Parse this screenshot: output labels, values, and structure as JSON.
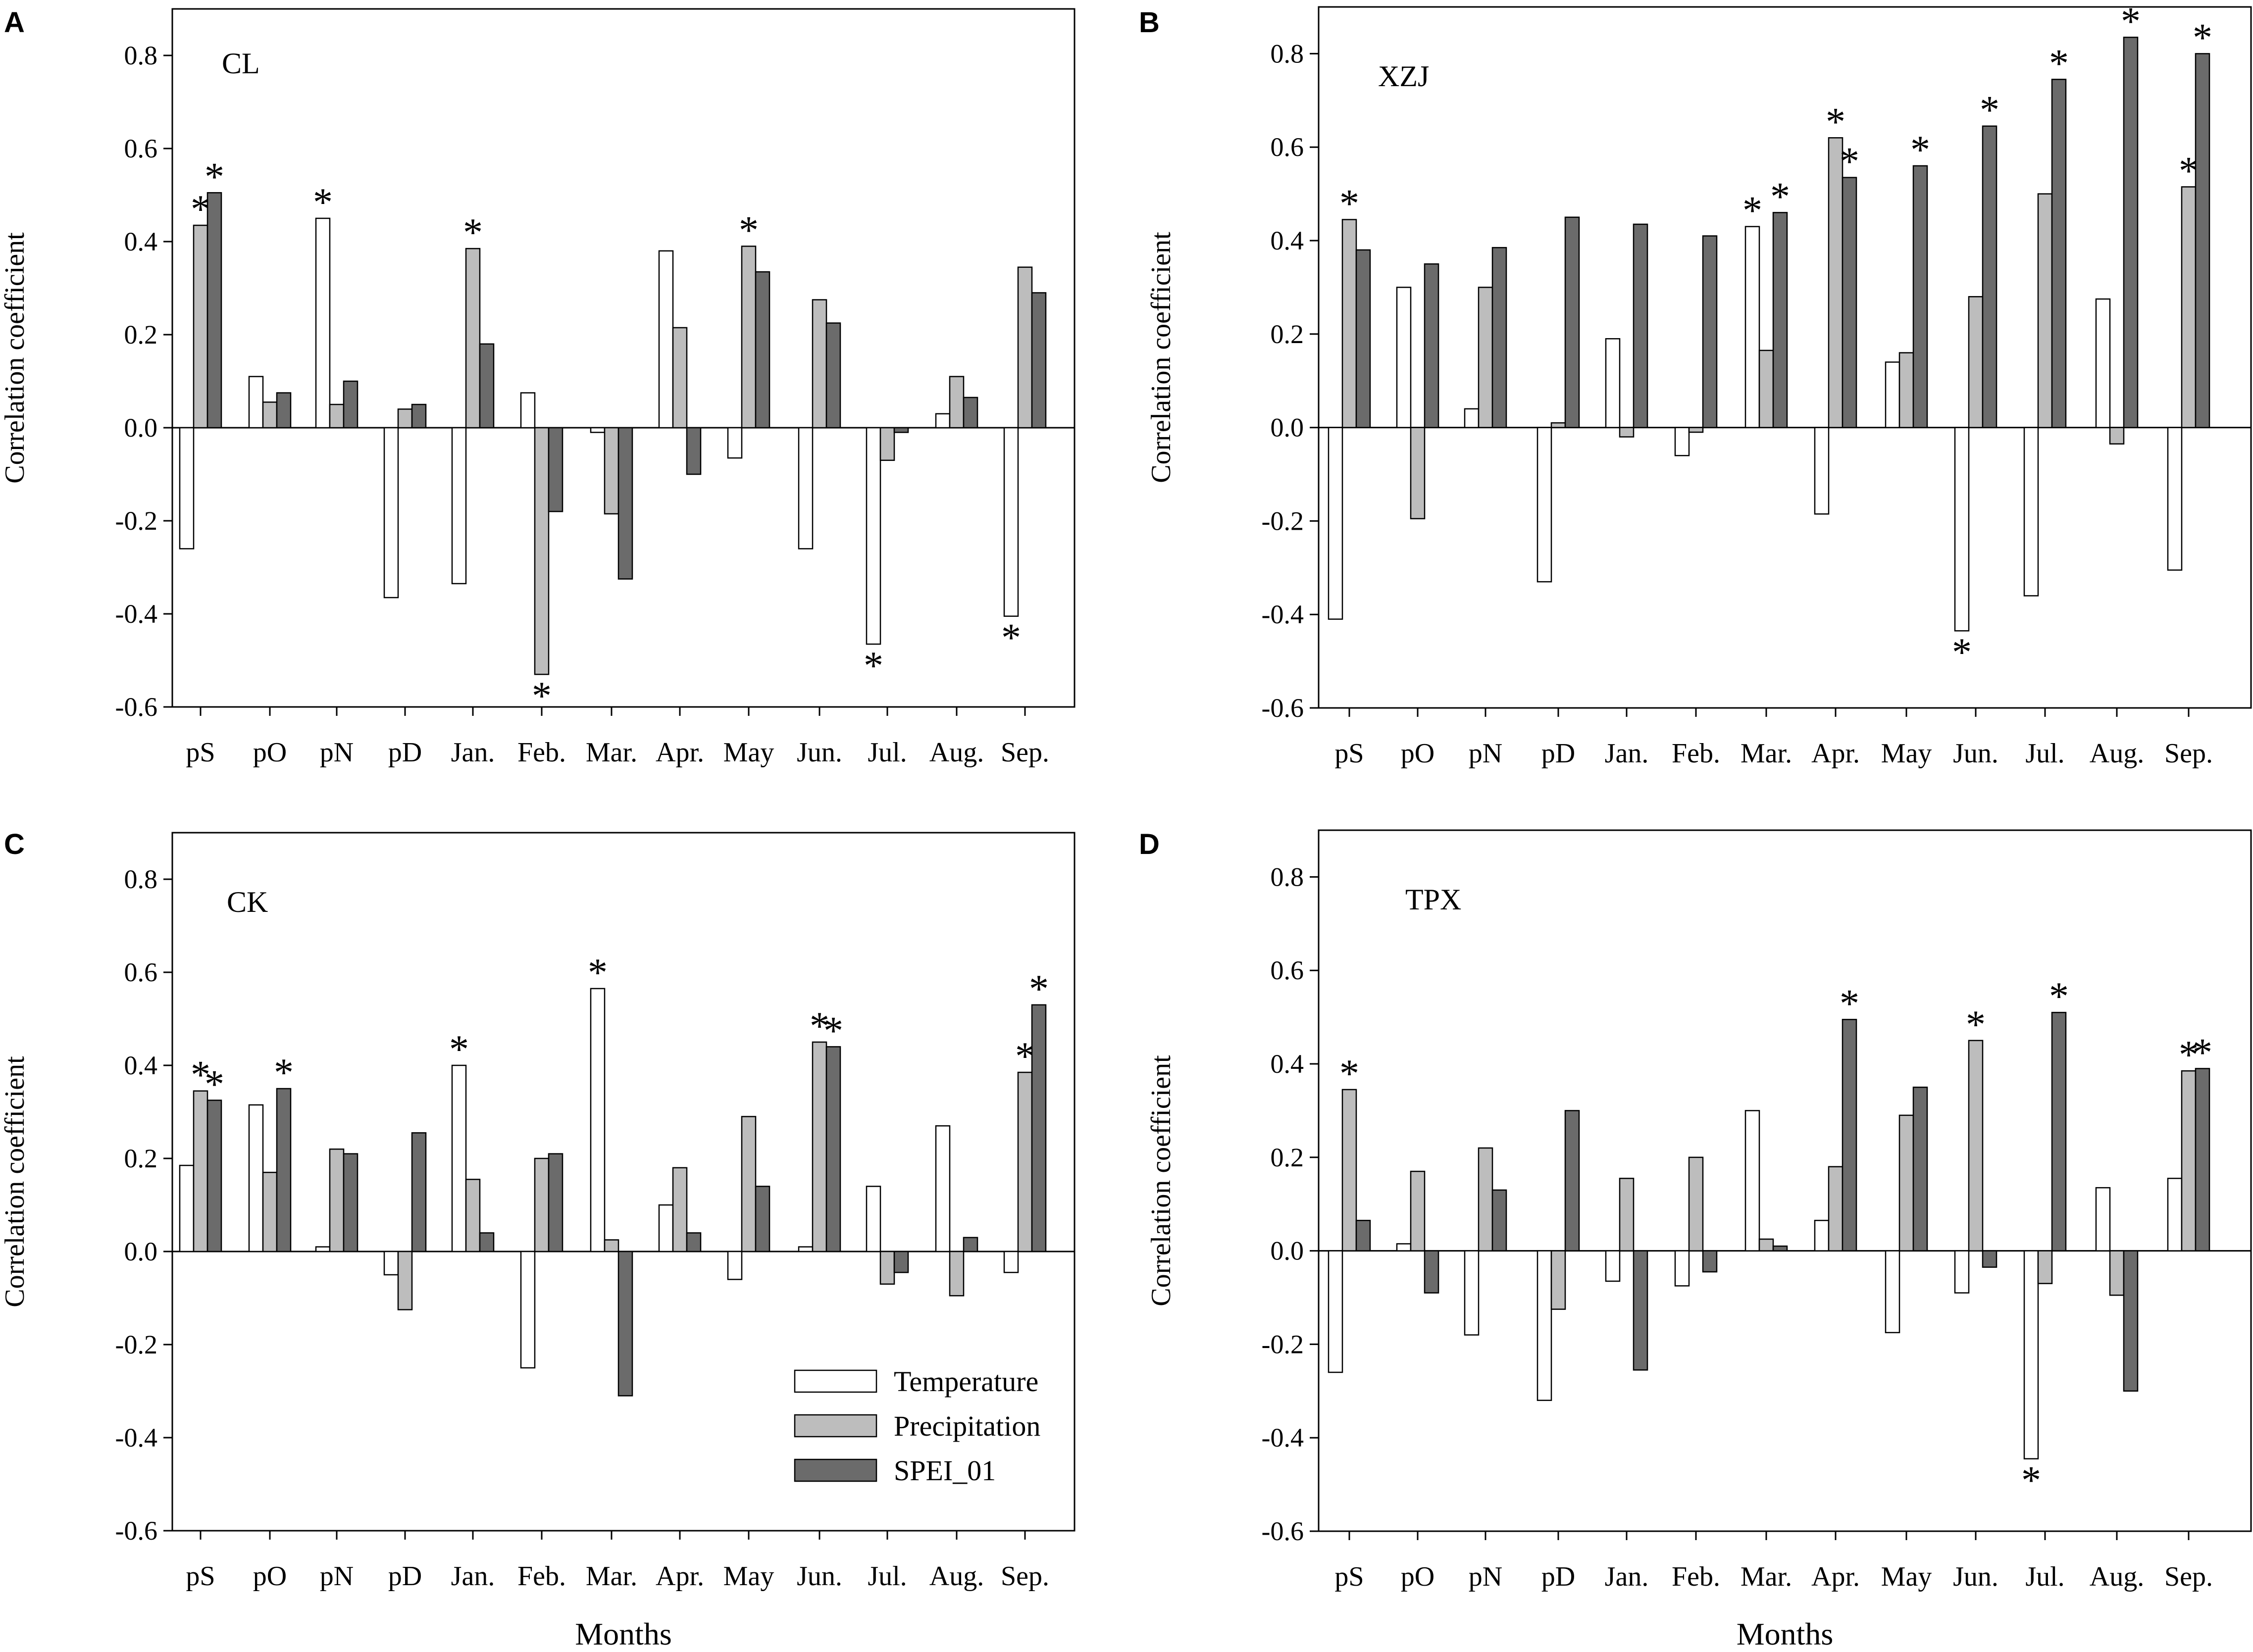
{
  "chart_data": [
    {
      "type": "bar",
      "panel": "A",
      "title": "CL",
      "ylabel": "Correlation coefficient",
      "xlabel": "",
      "ylim": [
        -0.6,
        0.9
      ],
      "yticks": [
        "0.8",
        "0.6",
        "0.4",
        "0.2",
        "0.0",
        "-0.2",
        "-0.4",
        "-0.6"
      ],
      "categories": [
        "pS",
        "pO",
        "pN",
        "pD",
        "Jan.",
        "Feb.",
        "Mar.",
        "Apr.",
        "May",
        "Jun.",
        "Jul.",
        "Aug.",
        "Sep."
      ],
      "series": [
        {
          "name": "Temperature",
          "values": [
            -0.26,
            0.11,
            0.45,
            -0.365,
            -0.335,
            0.075,
            -0.01,
            0.38,
            -0.065,
            -0.26,
            -0.465,
            0.03,
            -0.405
          ],
          "sig": [
            0,
            0,
            1,
            0,
            0,
            0,
            0,
            0,
            0,
            0,
            1,
            0,
            1
          ]
        },
        {
          "name": "Precipitation",
          "values": [
            0.435,
            0.055,
            0.05,
            0.04,
            0.385,
            -0.53,
            -0.185,
            0.215,
            0.39,
            0.275,
            -0.07,
            0.11,
            0.345
          ],
          "sig": [
            1,
            0,
            0,
            0,
            1,
            1,
            0,
            0,
            1,
            0,
            0,
            0,
            0
          ]
        },
        {
          "name": "SPEI_01",
          "values": [
            0.505,
            0.075,
            0.1,
            0.05,
            0.18,
            -0.18,
            -0.325,
            -0.1,
            0.335,
            0.225,
            -0.01,
            0.065,
            0.29
          ],
          "sig": [
            1,
            0,
            0,
            0,
            0,
            0,
            0,
            0,
            0,
            0,
            0,
            0,
            0
          ]
        }
      ]
    },
    {
      "type": "bar",
      "panel": "B",
      "title": "XZJ",
      "ylabel": "Correlation coefficient",
      "xlabel": "",
      "ylim": [
        -0.6,
        0.9
      ],
      "yticks": [
        "0.8",
        "0.6",
        "0.4",
        "0.2",
        "0.0",
        "-0.2",
        "-0.4",
        "-0.6"
      ],
      "categories": [
        "pS",
        "pO",
        "pN",
        "pD",
        "Jan.",
        "Feb.",
        "Mar.",
        "Apr.",
        "May",
        "Jun.",
        "Jul.",
        "Aug.",
        "Sep."
      ],
      "series": [
        {
          "name": "Temperature",
          "values": [
            -0.41,
            0.3,
            0.04,
            -0.33,
            0.19,
            -0.06,
            0.43,
            -0.185,
            0.14,
            -0.435,
            -0.36,
            0.275,
            -0.305
          ],
          "sig": [
            0,
            0,
            0,
            0,
            0,
            0,
            1,
            0,
            0,
            1,
            0,
            0,
            0
          ]
        },
        {
          "name": "Precipitation",
          "values": [
            0.445,
            -0.195,
            0.3,
            0.01,
            -0.02,
            -0.01,
            0.165,
            0.62,
            0.16,
            0.28,
            0.5,
            -0.035,
            0.515
          ],
          "sig": [
            1,
            0,
            0,
            0,
            0,
            0,
            0,
            1,
            0,
            0,
            0,
            0,
            1
          ]
        },
        {
          "name": "SPEI_01",
          "values": [
            0.38,
            0.35,
            0.385,
            0.45,
            0.435,
            0.41,
            0.46,
            0.535,
            0.56,
            0.645,
            0.745,
            0.835,
            0.8
          ],
          "sig": [
            0,
            0,
            0,
            0,
            0,
            0,
            1,
            1,
            1,
            1,
            1,
            1,
            1
          ]
        }
      ]
    },
    {
      "type": "bar",
      "panel": "C",
      "title": "CK",
      "ylabel": "Correlation coefficient",
      "xlabel": "Months",
      "ylim": [
        -0.6,
        0.9
      ],
      "yticks": [
        "0.8",
        "0.6",
        "0.4",
        "0.2",
        "0.0",
        "-0.2",
        "-0.4",
        "-0.6"
      ],
      "categories": [
        "pS",
        "pO",
        "pN",
        "pD",
        "Jan.",
        "Feb.",
        "Mar.",
        "Apr.",
        "May",
        "Jun.",
        "Jul.",
        "Aug.",
        "Sep."
      ],
      "series": [
        {
          "name": "Temperature",
          "values": [
            0.185,
            0.315,
            0.01,
            -0.05,
            0.4,
            -0.25,
            0.565,
            0.1,
            -0.06,
            0.01,
            0.14,
            0.27,
            -0.045
          ],
          "sig": [
            0,
            0,
            0,
            0,
            1,
            0,
            1,
            0,
            0,
            0,
            0,
            0,
            0
          ]
        },
        {
          "name": "Precipitation",
          "values": [
            0.345,
            0.17,
            0.22,
            -0.125,
            0.155,
            0.2,
            0.025,
            0.18,
            0.29,
            0.45,
            -0.07,
            -0.095,
            0.385
          ],
          "sig": [
            1,
            0,
            0,
            0,
            0,
            0,
            0,
            0,
            0,
            1,
            0,
            0,
            1
          ]
        },
        {
          "name": "SPEI_01",
          "values": [
            0.325,
            0.35,
            0.21,
            0.255,
            0.04,
            0.21,
            -0.31,
            0.04,
            0.14,
            0.44,
            -0.045,
            0.03,
            0.53
          ],
          "sig": [
            1,
            1,
            0,
            0,
            0,
            0,
            0,
            0,
            0,
            1,
            0,
            0,
            1
          ]
        }
      ],
      "legend": [
        "Temperature",
        "Precipitation",
        "SPEI_01"
      ]
    },
    {
      "type": "bar",
      "panel": "D",
      "title": "TPX",
      "ylabel": "Correlation coefficient",
      "xlabel": "Months",
      "ylim": [
        -0.6,
        0.9
      ],
      "yticks": [
        "0.8",
        "0.6",
        "0.4",
        "0.2",
        "0.0",
        "-0.2",
        "-0.4",
        "-0.6"
      ],
      "categories": [
        "pS",
        "pO",
        "pN",
        "pD",
        "Jan.",
        "Feb.",
        "Mar.",
        "Apr.",
        "May",
        "Jun.",
        "Jul.",
        "Aug.",
        "Sep."
      ],
      "series": [
        {
          "name": "Temperature",
          "values": [
            -0.26,
            0.015,
            -0.18,
            -0.32,
            -0.065,
            -0.075,
            0.3,
            0.065,
            -0.175,
            -0.09,
            -0.445,
            0.135,
            0.155
          ],
          "sig": [
            0,
            0,
            0,
            0,
            0,
            0,
            0,
            0,
            0,
            0,
            1,
            0,
            0
          ]
        },
        {
          "name": "Precipitation",
          "values": [
            0.345,
            0.17,
            0.22,
            -0.125,
            0.155,
            0.2,
            0.025,
            0.18,
            0.29,
            0.45,
            -0.07,
            -0.095,
            0.385
          ],
          "sig": [
            1,
            0,
            0,
            0,
            0,
            0,
            0,
            0,
            0,
            1,
            0,
            0,
            1
          ]
        },
        {
          "name": "SPEI_01",
          "values": [
            0.065,
            -0.09,
            0.13,
            0.3,
            -0.255,
            -0.045,
            0.01,
            0.495,
            0.35,
            -0.035,
            0.51,
            -0.3,
            0.39
          ],
          "sig": [
            0,
            0,
            0,
            0,
            0,
            0,
            0,
            1,
            0,
            0,
            1,
            0,
            1
          ]
        }
      ]
    }
  ],
  "significance_marker": "*",
  "colors": {
    "Temperature": "#ffffff",
    "Precipitation": "#bdbdbd",
    "SPEI_01": "#6b6b6b"
  }
}
